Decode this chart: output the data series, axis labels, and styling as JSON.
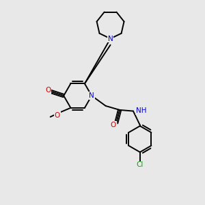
{
  "bg_color": "#e8e8e8",
  "atom_colors": {
    "N": "#0000cc",
    "O": "#cc0000",
    "Cl": "#00aa00"
  },
  "bond_color": "#000000",
  "figsize": [
    3.0,
    3.0
  ],
  "dpi": 100,
  "lw": 1.4,
  "fontsize": 7.5,
  "xlim": [
    -2.5,
    4.5
  ],
  "ylim": [
    -4.5,
    4.5
  ]
}
